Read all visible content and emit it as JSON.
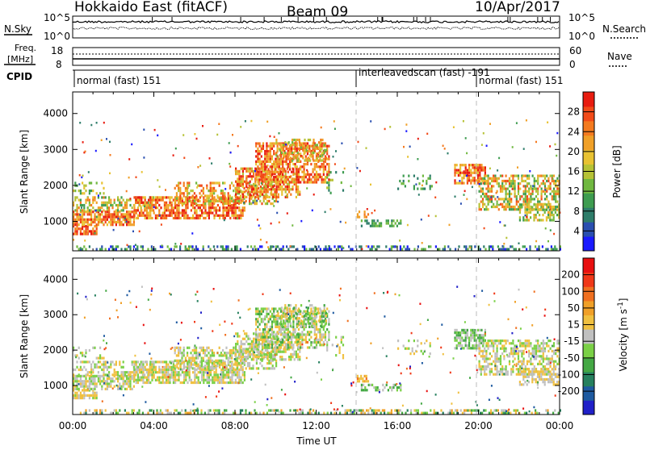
{
  "header": {
    "title": "Hokkaido East (fitACF)",
    "beam": "Beam 09",
    "date": "10/Apr/2017"
  },
  "noise_panel": {
    "left_label": "N.Sky",
    "left_ticks": [
      "10^5",
      "10^0"
    ],
    "right_ticks": [
      "10^5",
      "10^0"
    ],
    "right_label": "N.Search"
  },
  "freq_panel": {
    "left_label_1": "Freq.",
    "left_label_2": "[MHz]",
    "left_ticks": [
      "18",
      "8"
    ],
    "right_ticks": [
      "60",
      "0"
    ],
    "right_label": "Nave"
  },
  "cpid": {
    "label": "CPID",
    "segments": [
      {
        "text": "normal (fast) 151"
      },
      {
        "text": "interleavedscan (fast) -191"
      },
      {
        "text": "normal (fast) 151"
      }
    ]
  },
  "chart_data": [
    {
      "type": "heatmap",
      "parameter": "Power",
      "ylabel": "Slant Range [km]",
      "xlabel": "Time UT",
      "y_ticks": [
        1000,
        2000,
        3000,
        4000
      ],
      "ylim": [
        180,
        4600
      ],
      "x_ticks": [
        "00:00",
        "04:00",
        "08:00",
        "12:00",
        "16:00",
        "20:00",
        "00:00"
      ],
      "xlim_hours": [
        0,
        24
      ],
      "colorbar": {
        "label": "Power [dB]",
        "ticks": [
          "4",
          "8",
          "12",
          "16",
          "20",
          "24",
          "28"
        ],
        "colors": [
          "#1a1aff",
          "#2a4fb0",
          "#2e7d6a",
          "#3e9c50",
          "#70b840",
          "#b6c236",
          "#e8c232",
          "#f0a028",
          "#f47a1f",
          "#f24a18",
          "#e81c10"
        ]
      },
      "scan_boundaries_hours": [
        14.0,
        20.0
      ]
    },
    {
      "type": "heatmap",
      "parameter": "Velocity",
      "ylabel": "Slant Range [km]",
      "xlabel": "Time UT",
      "y_ticks": [
        1000,
        2000,
        3000,
        4000
      ],
      "ylim": [
        180,
        4600
      ],
      "x_ticks": [
        "00:00",
        "04:00",
        "08:00",
        "12:00",
        "16:00",
        "20:00",
        "00:00"
      ],
      "xlim_hours": [
        0,
        24
      ],
      "colorbar": {
        "label": "Velocity [m s^-1]",
        "ticks": [
          "200",
          "100",
          "50",
          "15",
          "-15",
          "-50",
          "-100",
          "-200"
        ],
        "colors": [
          "#2020c8",
          "#1e5aa0",
          "#26805e",
          "#44a844",
          "#7ad046",
          "#c0c0c0",
          "#f0c040",
          "#f0a028",
          "#f07020",
          "#f03818",
          "#e81010"
        ]
      },
      "scan_boundaries_hours": [
        14.0,
        20.0
      ]
    }
  ]
}
